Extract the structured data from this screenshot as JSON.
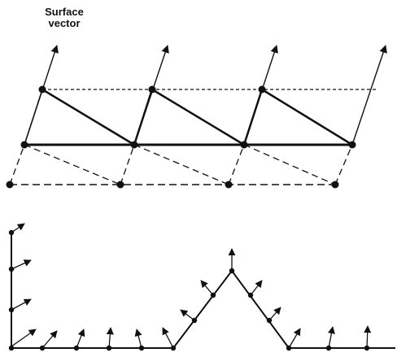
{
  "figure": {
    "label_line1": "Surface",
    "label_line2": "vector"
  },
  "colors": {
    "ink": "#111111",
    "background": "#ffffff"
  }
}
